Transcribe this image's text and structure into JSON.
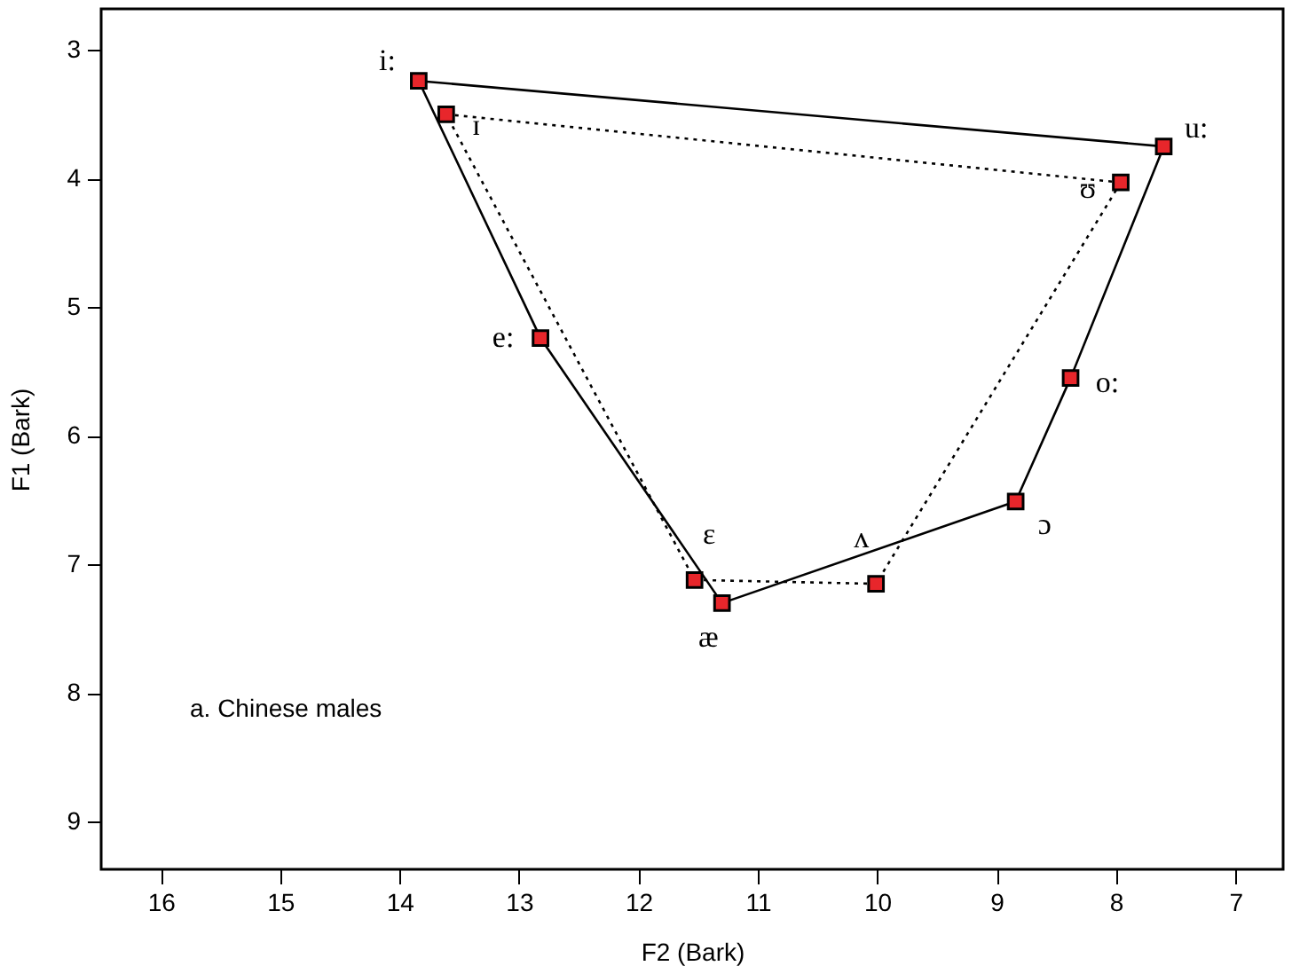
{
  "chart_data": {
    "type": "scatter",
    "xlabel": "F2 (Bark)",
    "ylabel": "F1 (Bark)",
    "xlim": [
      16.5,
      6.6
    ],
    "ylim": [
      9.37,
      2.68
    ],
    "xticks": [
      16,
      15,
      14,
      13,
      12,
      11,
      10,
      9,
      8,
      7
    ],
    "yticks": [
      3,
      4,
      5,
      6,
      7,
      8,
      9
    ],
    "grid": false,
    "marker": "square",
    "series": [
      {
        "color": "#e8262b",
        "x": [
          13.84,
          7.6,
          8.38,
          8.84,
          11.3,
          12.82
        ],
        "values": [
          3.24,
          3.75,
          5.55,
          6.51,
          7.3,
          5.24
        ]
      },
      {
        "color": "#e8262b",
        "x": [
          13.61,
          7.96,
          10.01,
          11.53
        ],
        "values": [
          3.5,
          4.03,
          7.15,
          7.12
        ]
      },
      {
        "type": "line",
        "marker": "none",
        "line_style": "solid",
        "color": "#000000",
        "x": [
          13.84,
          7.6
        ],
        "values": [
          3.24,
          3.75
        ]
      },
      {
        "type": "line",
        "marker": "none",
        "line_style": "dotted",
        "color": "#000000",
        "x": [
          13.61,
          7.96
        ],
        "values": [
          3.5,
          4.03
        ]
      },
      {
        "type": "line",
        "marker": "none",
        "line_style": "solid",
        "color": "#000000",
        "x": [
          7.6,
          8.38,
          8.84,
          11.3,
          12.82,
          13.84
        ],
        "values": [
          3.75,
          5.55,
          6.51,
          7.3,
          5.24,
          3.24
        ]
      },
      {
        "type": "line",
        "marker": "none",
        "line_style": "dotted",
        "color": "#000000",
        "x": [
          7.96,
          10.01,
          11.53,
          13.61
        ],
        "values": [
          4.03,
          7.15,
          7.12,
          3.5
        ]
      }
    ],
    "annotations": [
      {
        "text": "i:",
        "x": 13.84,
        "y": 3.24
      },
      {
        "text": "ɪ",
        "x": 13.61,
        "y": 3.5
      },
      {
        "text": "u:",
        "x": 7.6,
        "y": 3.75
      },
      {
        "text": "ʊ",
        "x": 7.96,
        "y": 4.03
      },
      {
        "text": "e:",
        "x": 12.82,
        "y": 5.24
      },
      {
        "text": "o:",
        "x": 8.38,
        "y": 5.55
      },
      {
        "text": "ɔ",
        "x": 8.84,
        "y": 6.51
      },
      {
        "text": "ɛ",
        "x": 11.53,
        "y": 7.12
      },
      {
        "text": "æ",
        "x": 11.3,
        "y": 7.3
      },
      {
        "text": "ʌ",
        "x": 10.01,
        "y": 7.15
      },
      "a. Chinese males"
    ]
  }
}
